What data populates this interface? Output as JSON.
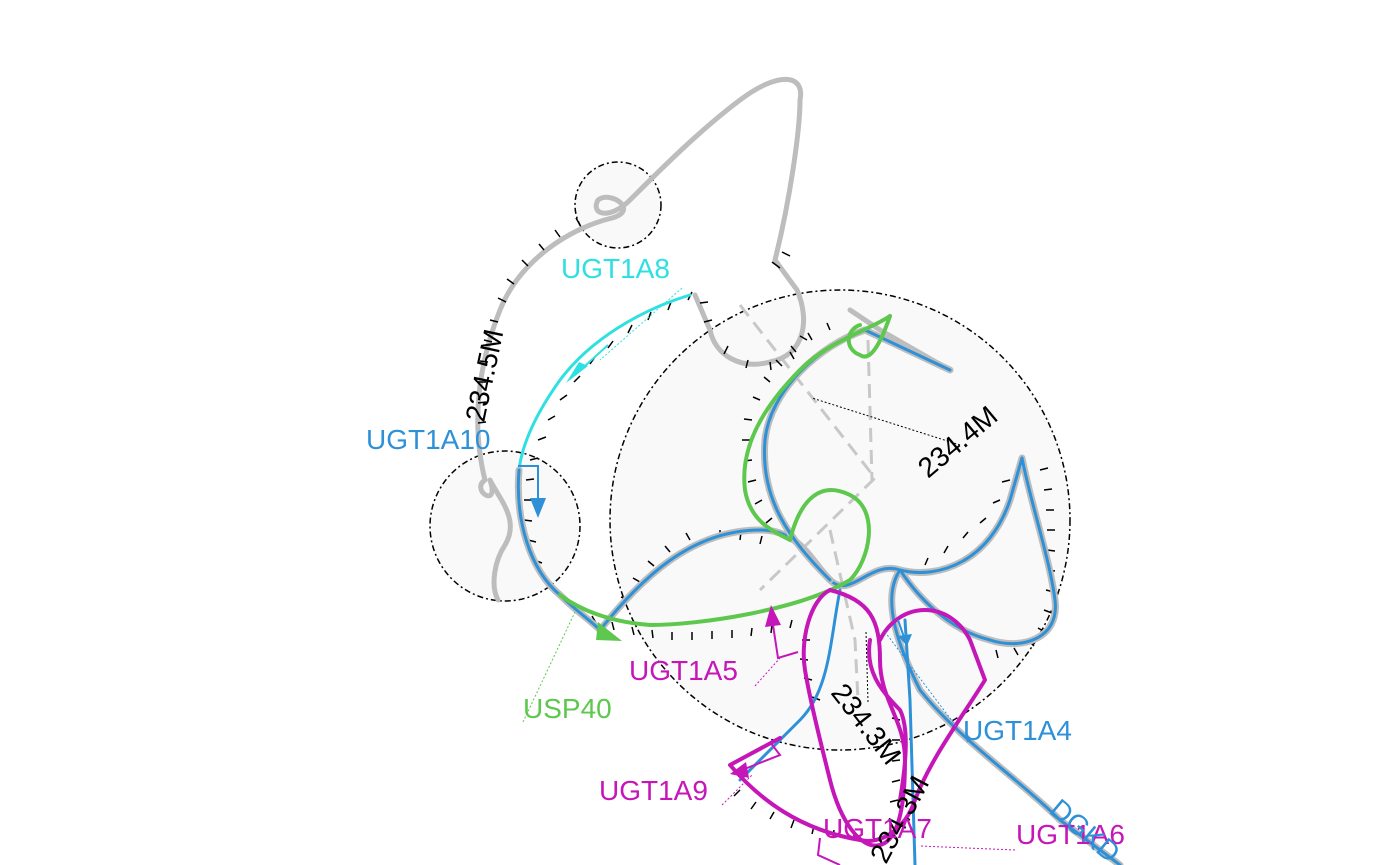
{
  "colors": {
    "backbone": "#bdbdbd",
    "blue": "#2e91d8",
    "green": "#5ec84e",
    "cyan": "#2fe0e3",
    "magenta": "#c516b8",
    "black": "#000000"
  },
  "coordinates": {
    "c1": "234.5M",
    "c2": "234.4M",
    "c3": "234.3M",
    "c4": "234.3M"
  },
  "genes": {
    "UGT1A8": {
      "label": "UGT1A8",
      "color": "#2fe0e3"
    },
    "UGT1A10": {
      "label": "UGT1A10",
      "color": "#2e91d8"
    },
    "USP40": {
      "label": "USP40",
      "color": "#5ec84e"
    },
    "UGT1A5": {
      "label": "UGT1A5",
      "color": "#c516b8"
    },
    "UGT1A4": {
      "label": "UGT1A4",
      "color": "#2e91d8"
    },
    "UGT1A9": {
      "label": "UGT1A9",
      "color": "#c516b8"
    },
    "UGT1A7": {
      "label": "UGT1A7",
      "color": "#c516b8"
    },
    "UGT1A6": {
      "label": "UGT1A6",
      "color": "#c516b8"
    },
    "DGKD": {
      "label": "DGKD",
      "color": "#2e91d8"
    }
  }
}
